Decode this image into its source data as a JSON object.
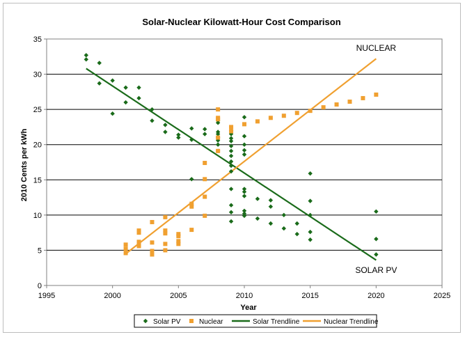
{
  "chart_data": {
    "type": "scatter",
    "title": "Solar-Nuclear Kilowatt-Hour Cost Comparison",
    "xlabel": "Year",
    "ylabel": "2010 Cents per kWh",
    "xlim": [
      1995,
      2025
    ],
    "ylim": [
      0,
      35
    ],
    "xticks": [
      "1995",
      "2000",
      "2005",
      "2010",
      "2015",
      "2020",
      "2025"
    ],
    "yticks": [
      "0",
      "5",
      "10",
      "15",
      "20",
      "25",
      "30",
      "35"
    ],
    "grid": "horizontal",
    "legend_position": "bottom",
    "annotations": [
      {
        "text": "NUCLEAR",
        "x": 2020,
        "y": 33.3
      },
      {
        "text": "SOLAR PV",
        "x": 2020,
        "y": 1.8
      }
    ],
    "series": [
      {
        "name": "Solar PV",
        "kind": "points",
        "marker": "diamond",
        "color": "#1a6b1a",
        "points": [
          [
            1998,
            32.7
          ],
          [
            1998,
            32.1
          ],
          [
            1999,
            31.6
          ],
          [
            1999,
            28.7
          ],
          [
            2000,
            29.1
          ],
          [
            2000,
            24.4
          ],
          [
            2001,
            28.1
          ],
          [
            2001,
            26.0
          ],
          [
            2002,
            28.1
          ],
          [
            2002,
            26.6
          ],
          [
            2003,
            25.0
          ],
          [
            2003,
            23.4
          ],
          [
            2004,
            22.8
          ],
          [
            2004,
            21.8
          ],
          [
            2005,
            21.4
          ],
          [
            2005,
            21.0
          ],
          [
            2006,
            22.3
          ],
          [
            2006,
            20.7
          ],
          [
            2006,
            15.1
          ],
          [
            2007,
            22.2
          ],
          [
            2007,
            21.5
          ],
          [
            2008,
            23.4
          ],
          [
            2008,
            23.1
          ],
          [
            2008,
            21.8
          ],
          [
            2008,
            21.5
          ],
          [
            2008,
            21.0
          ],
          [
            2008,
            20.6
          ],
          [
            2008,
            20.0
          ],
          [
            2008,
            19.1
          ],
          [
            2009,
            22.0
          ],
          [
            2009,
            21.5
          ],
          [
            2009,
            20.9
          ],
          [
            2009,
            20.5
          ],
          [
            2009,
            19.8
          ],
          [
            2009,
            19.1
          ],
          [
            2009,
            18.4
          ],
          [
            2009,
            17.6
          ],
          [
            2009,
            17.0
          ],
          [
            2009,
            16.2
          ],
          [
            2009,
            13.7
          ],
          [
            2009,
            11.4
          ],
          [
            2009,
            10.4
          ],
          [
            2009,
            9.1
          ],
          [
            2010,
            23.9
          ],
          [
            2010,
            21.2
          ],
          [
            2010,
            20.0
          ],
          [
            2010,
            19.2
          ],
          [
            2010,
            18.6
          ],
          [
            2010,
            13.7
          ],
          [
            2010,
            13.3
          ],
          [
            2010,
            12.7
          ],
          [
            2010,
            10.6
          ],
          [
            2010,
            10.2
          ],
          [
            2010,
            9.9
          ],
          [
            2011,
            12.3
          ],
          [
            2011,
            9.5
          ],
          [
            2012,
            12.1
          ],
          [
            2012,
            11.2
          ],
          [
            2012,
            8.8
          ],
          [
            2013,
            10.0
          ],
          [
            2013,
            8.1
          ],
          [
            2014,
            8.8
          ],
          [
            2014,
            7.3
          ],
          [
            2015,
            15.9
          ],
          [
            2015,
            12.0
          ],
          [
            2015,
            10.0
          ],
          [
            2015,
            7.6
          ],
          [
            2015,
            6.5
          ],
          [
            2020,
            10.5
          ],
          [
            2020,
            6.6
          ],
          [
            2020,
            4.4
          ]
        ]
      },
      {
        "name": "Nuclear",
        "kind": "points",
        "marker": "square",
        "color": "#f0a030",
        "points": [
          [
            2001,
            5.8
          ],
          [
            2001,
            5.2
          ],
          [
            2001,
            4.6
          ],
          [
            2002,
            7.8
          ],
          [
            2002,
            7.5
          ],
          [
            2002,
            6.2
          ],
          [
            2002,
            5.9
          ],
          [
            2002,
            5.6
          ],
          [
            2003,
            9.0
          ],
          [
            2003,
            6.1
          ],
          [
            2003,
            4.9
          ],
          [
            2003,
            4.4
          ],
          [
            2004,
            9.7
          ],
          [
            2004,
            7.8
          ],
          [
            2004,
            7.4
          ],
          [
            2004,
            5.9
          ],
          [
            2004,
            5.0
          ],
          [
            2005,
            7.3
          ],
          [
            2005,
            7.0
          ],
          [
            2005,
            6.3
          ],
          [
            2005,
            5.9
          ],
          [
            2006,
            11.6
          ],
          [
            2006,
            11.2
          ],
          [
            2006,
            7.9
          ],
          [
            2007,
            17.4
          ],
          [
            2007,
            15.1
          ],
          [
            2007,
            12.6
          ],
          [
            2007,
            9.9
          ],
          [
            2008,
            25.0
          ],
          [
            2008,
            23.8
          ],
          [
            2008,
            23.6
          ],
          [
            2008,
            21.0
          ],
          [
            2008,
            19.1
          ],
          [
            2009,
            22.5
          ],
          [
            2009,
            21.9
          ],
          [
            2010,
            22.9
          ],
          [
            2011,
            23.3
          ],
          [
            2012,
            23.8
          ],
          [
            2013,
            24.1
          ],
          [
            2014,
            24.5
          ],
          [
            2015,
            24.8
          ],
          [
            2016,
            25.3
          ],
          [
            2017,
            25.7
          ],
          [
            2018,
            26.1
          ],
          [
            2019,
            26.6
          ],
          [
            2020,
            27.1
          ]
        ]
      },
      {
        "name": "Solar Trendline",
        "kind": "line",
        "color": "#1a6b1a",
        "points": [
          [
            1998,
            30.8
          ],
          [
            2020,
            3.6
          ]
        ]
      },
      {
        "name": "Nuclear Trendline",
        "kind": "line",
        "color": "#f0a030",
        "points": [
          [
            2001,
            4.5
          ],
          [
            2020,
            32.2
          ]
        ]
      }
    ]
  }
}
